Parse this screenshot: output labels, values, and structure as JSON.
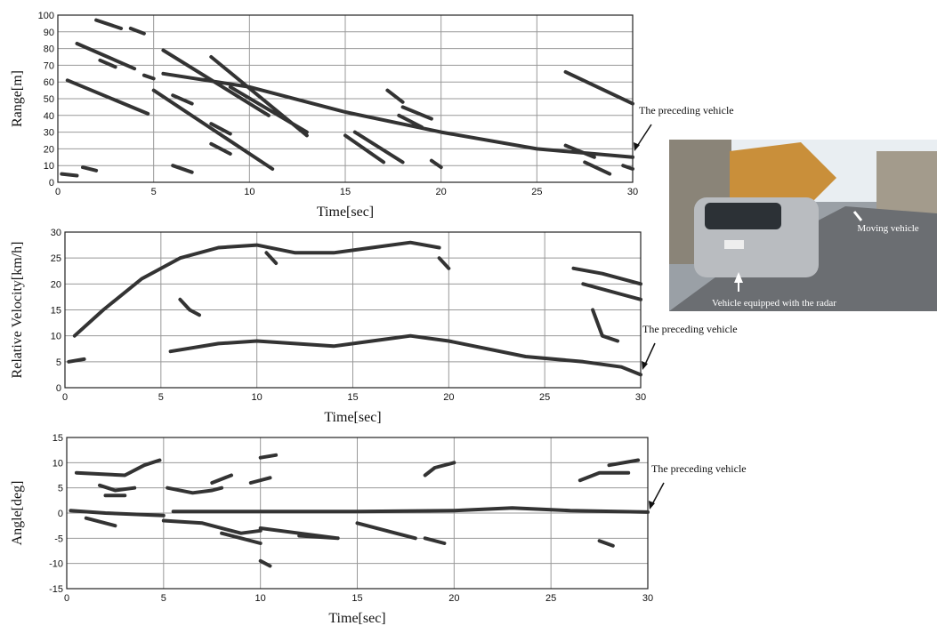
{
  "chart_data": [
    {
      "type": "line",
      "xlabel": "Time[sec]",
      "ylabel": "Range[m]",
      "annotation": "The preceding vehicle",
      "xlim": [
        0,
        30
      ],
      "xticks": [
        0,
        5,
        10,
        15,
        20,
        25,
        30
      ],
      "ylim": [
        0,
        100
      ],
      "yticks": [
        0,
        10,
        20,
        30,
        40,
        50,
        60,
        70,
        80,
        90,
        100
      ],
      "grid": true,
      "series": [
        {
          "color": "#333333",
          "x": [
            5.5,
            10,
            15,
            20,
            25,
            30,
            null,
            0.5,
            4.7,
            null,
            1,
            4,
            null,
            2,
            3.3,
            null,
            3.8,
            4.5,
            null,
            2.2,
            3,
            null,
            4.5,
            5,
            null,
            5,
            11.2,
            null,
            5.5,
            11,
            null,
            6,
            7,
            null,
            8,
            13,
            null,
            8,
            9,
            null,
            6,
            7,
            null,
            0.2,
            1,
            null,
            1.3,
            2,
            null,
            8,
            9,
            null,
            9,
            13,
            null,
            15,
            17,
            null,
            15.5,
            18,
            null,
            17.2,
            18,
            null,
            18,
            19.5,
            null,
            17.8,
            19,
            null,
            19.5,
            20,
            null,
            26.5,
            30,
            null,
            26.5,
            28,
            null,
            27.5,
            28.8,
            null,
            29.5,
            30
          ],
          "values": [
            65,
            57,
            42,
            30,
            20,
            15,
            null,
            61,
            41,
            null,
            83,
            68,
            null,
            97,
            92,
            null,
            92,
            89,
            null,
            73,
            69,
            null,
            64,
            62,
            null,
            55,
            8,
            null,
            79,
            40,
            null,
            52,
            47,
            null,
            75,
            28,
            null,
            35,
            29,
            null,
            10,
            6,
            null,
            5,
            4,
            null,
            9,
            7,
            null,
            23,
            17,
            null,
            57,
            30,
            null,
            28,
            12,
            null,
            30,
            12,
            null,
            55,
            48,
            null,
            45,
            38,
            null,
            40,
            33,
            null,
            13,
            9,
            null,
            66,
            47,
            null,
            22,
            15,
            null,
            12,
            5,
            null,
            10,
            8
          ]
        }
      ]
    },
    {
      "type": "line",
      "xlabel": "Time[sec]",
      "ylabel": "Relative Velocity[km/h]",
      "annotation": "The preceding vehicle",
      "xlim": [
        0,
        30
      ],
      "xticks": [
        0,
        5,
        10,
        15,
        20,
        25,
        30
      ],
      "ylim": [
        0,
        30
      ],
      "yticks": [
        0,
        5,
        10,
        15,
        20,
        25,
        30
      ],
      "grid": true,
      "series": [
        {
          "color": "#333333",
          "x": [
            0.5,
            2,
            4,
            6,
            8,
            10,
            12,
            14,
            16,
            18,
            19.5,
            null,
            0.2,
            1,
            null,
            5.5,
            8,
            10,
            12,
            14,
            16,
            18,
            20,
            24,
            27,
            29,
            30,
            null,
            6,
            6.5,
            7,
            null,
            10.5,
            11,
            null,
            19.5,
            20,
            null,
            26.5,
            28,
            30,
            null,
            27,
            29,
            30,
            null,
            27.5,
            28,
            28.8
          ],
          "values": [
            10,
            15,
            21,
            25,
            27,
            27.5,
            26,
            26,
            27,
            28,
            27,
            null,
            5,
            5.5,
            null,
            7,
            8.5,
            9,
            8.5,
            8,
            9,
            10,
            9,
            6,
            5,
            4,
            2.5,
            null,
            17,
            15,
            14,
            null,
            26,
            24,
            null,
            25,
            23,
            null,
            23,
            22,
            20,
            null,
            20,
            18,
            17,
            null,
            15,
            10,
            9
          ]
        }
      ]
    },
    {
      "type": "line",
      "xlabel": "Time[sec]",
      "ylabel": "Angle[deg]",
      "annotation": "The preceding vehicle",
      "xlim": [
        0,
        30
      ],
      "xticks": [
        0,
        5,
        10,
        15,
        20,
        25,
        30
      ],
      "ylim": [
        -15,
        15
      ],
      "yticks": [
        -15,
        -10,
        -5,
        0,
        5,
        10,
        15
      ],
      "grid": true,
      "series": [
        {
          "color": "#333333",
          "x": [
            5.5,
            10,
            15,
            20,
            23,
            26,
            30,
            null,
            0.2,
            2,
            5,
            null,
            0.5,
            3,
            4,
            4.8,
            null,
            1.7,
            2.5,
            3.5,
            null,
            2,
            3,
            null,
            5.2,
            6.5,
            7.5,
            8,
            null,
            7.5,
            8.5,
            null,
            9.5,
            10.5,
            null,
            10,
            10.8,
            null,
            10,
            10.5,
            null,
            1,
            2.5,
            null,
            5,
            7,
            9,
            10,
            null,
            8,
            9,
            10,
            null,
            10,
            12,
            14,
            null,
            12,
            14,
            null,
            15,
            17,
            18,
            null,
            18.5,
            19.5,
            null,
            18.5,
            19,
            20,
            null,
            26.5,
            27.5,
            29,
            null,
            28,
            29.5,
            null,
            27.5,
            28.2
          ],
          "values": [
            0.3,
            0.3,
            0.3,
            0.5,
            1,
            0.5,
            0.2,
            null,
            0.5,
            0,
            -0.5,
            null,
            8,
            7.5,
            9.5,
            10.5,
            null,
            5.5,
            4.5,
            5,
            null,
            3.5,
            3.5,
            null,
            5,
            4,
            4.5,
            5,
            null,
            6,
            7.5,
            null,
            6,
            7,
            null,
            11,
            11.5,
            null,
            -9.5,
            -10.5,
            null,
            -1,
            -2.5,
            null,
            -1.5,
            -2,
            -4,
            -3.5,
            null,
            -4,
            -5,
            -6,
            null,
            -3,
            -4,
            -5,
            null,
            -4.5,
            -5,
            null,
            -2,
            -4,
            -5,
            null,
            -5,
            -6,
            null,
            7.5,
            9,
            10,
            null,
            6.5,
            8,
            8,
            null,
            9.5,
            10.5,
            null,
            -5.5,
            -6.5
          ]
        }
      ]
    }
  ],
  "photo": {
    "label_moving": "Moving vehicle",
    "label_radar": "Vehicle equipped with the radar"
  }
}
